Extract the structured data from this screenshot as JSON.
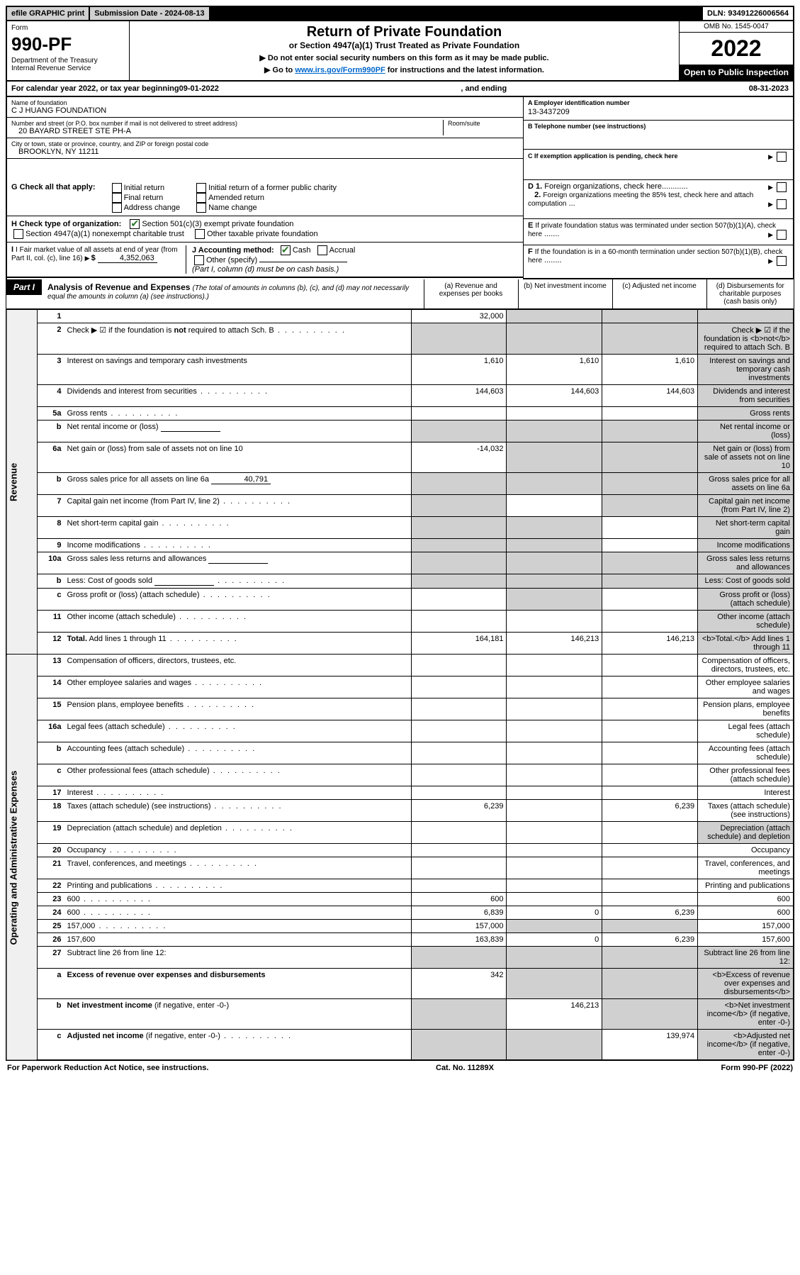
{
  "top": {
    "efile": "efile GRAPHIC print",
    "sub_date_label": "Submission Date - 2024-08-13",
    "dln": "DLN: 93491226006564"
  },
  "header": {
    "form_label": "Form",
    "form_no": "990-PF",
    "dept": "Department of the Treasury\nInternal Revenue Service",
    "title": "Return of Private Foundation",
    "subtitle": "or Section 4947(a)(1) Trust Treated as Private Foundation",
    "note1": "▶ Do not enter social security numbers on this form as it may be made public.",
    "note2_pre": "▶ Go to ",
    "note2_link": "www.irs.gov/Form990PF",
    "note2_post": " for instructions and the latest information.",
    "omb": "OMB No. 1545-0047",
    "year": "2022",
    "open": "Open to Public Inspection"
  },
  "year_line": {
    "pre": "For calendar year 2022, or tax year beginning ",
    "begin": "09-01-2022",
    "mid": ", and ending ",
    "end": "08-31-2023"
  },
  "name_block": {
    "label": "Name of foundation",
    "value": "C J HUANG FOUNDATION",
    "street_label": "Number and street (or P.O. box number if mail is not delivered to street address)",
    "street": "20 BAYARD STREET STE PH-A",
    "room_label": "Room/suite",
    "city_label": "City or town, state or province, country, and ZIP or foreign postal code",
    "city": "BROOKLYN, NY  11211"
  },
  "right_block": {
    "a_label": "A Employer identification number",
    "a_val": "13-3437209",
    "b_label": "B Telephone number (see instructions)",
    "c_label": "C If exemption application is pending, check here",
    "d1": "D 1. Foreign organizations, check here",
    "d2": "2. Foreign organizations meeting the 85% test, check here and attach computation",
    "e": "E If private foundation status was terminated under section 507(b)(1)(A), check here",
    "f": "F If the foundation is in a 60-month termination under section 507(b)(1)(B), check here"
  },
  "g": {
    "label": "G Check all that apply:",
    "opts": [
      "Initial return",
      "Initial return of a former public charity",
      "Final return",
      "Amended return",
      "Address change",
      "Name change"
    ]
  },
  "h": {
    "label": "H Check type of organization:",
    "opt1": "Section 501(c)(3) exempt private foundation",
    "opt2": "Section 4947(a)(1) nonexempt charitable trust",
    "opt3": "Other taxable private foundation"
  },
  "i": {
    "label": "I Fair market value of all assets at end of year (from Part II, col. (c), line 16)",
    "value": "4,352,063"
  },
  "j": {
    "label": "J Accounting method:",
    "cash": "Cash",
    "accrual": "Accrual",
    "other": "Other (specify)",
    "note": "(Part I, column (d) must be on cash basis.)"
  },
  "part1": {
    "label": "Part I",
    "title": "Analysis of Revenue and Expenses",
    "title_note": "(The total of amounts in columns (b), (c), and (d) may not necessarily equal the amounts in column (a) (see instructions).)",
    "cols": {
      "a": "(a) Revenue and expenses per books",
      "b": "(b) Net investment income",
      "c": "(c) Adjusted net income",
      "d": "(d) Disbursements for charitable purposes (cash basis only)"
    }
  },
  "side_rev": "Revenue",
  "side_exp": "Operating and Administrative Expenses",
  "rows": [
    {
      "n": "1",
      "d": "",
      "a": "32,000",
      "b": "",
      "c": "",
      "shade_b": true,
      "shade_c": true,
      "shade_d": true
    },
    {
      "n": "2",
      "d": "Check ▶ ☑ if the foundation is <b>not</b> required to attach Sch. B",
      "dots": true,
      "shade_all": true
    },
    {
      "n": "3",
      "d": "Interest on savings and temporary cash investments",
      "a": "1,610",
      "b": "1,610",
      "c": "1,610",
      "shade_d": true
    },
    {
      "n": "4",
      "d": "Dividends and interest from securities",
      "dots": true,
      "a": "144,603",
      "b": "144,603",
      "c": "144,603",
      "shade_d": true
    },
    {
      "n": "5a",
      "d": "Gross rents",
      "dots": true,
      "shade_d": true
    },
    {
      "n": "b",
      "d": "Net rental income or (loss)",
      "inline_field": true,
      "shade_a": true,
      "shade_b": true,
      "shade_c": true,
      "shade_d": true
    },
    {
      "n": "6a",
      "d": "Net gain or (loss) from sale of assets not on line 10",
      "a": "-14,032",
      "shade_b": true,
      "shade_c": true,
      "shade_d": true
    },
    {
      "n": "b",
      "d": "Gross sales price for all assets on line 6a",
      "inline_val": "40,791",
      "shade_a": true,
      "shade_b": true,
      "shade_c": true,
      "shade_d": true
    },
    {
      "n": "7",
      "d": "Capital gain net income (from Part IV, line 2)",
      "dots": true,
      "shade_a": true,
      "shade_c": true,
      "shade_d": true
    },
    {
      "n": "8",
      "d": "Net short-term capital gain",
      "dots": true,
      "shade_a": true,
      "shade_b": true,
      "shade_d": true
    },
    {
      "n": "9",
      "d": "Income modifications",
      "dots": true,
      "shade_a": true,
      "shade_b": true,
      "shade_d": true
    },
    {
      "n": "10a",
      "d": "Gross sales less returns and allowances",
      "inline_field": true,
      "shade_a": true,
      "shade_b": true,
      "shade_c": true,
      "shade_d": true
    },
    {
      "n": "b",
      "d": "Less: Cost of goods sold",
      "dots": true,
      "inline_field": true,
      "shade_a": true,
      "shade_b": true,
      "shade_c": true,
      "shade_d": true
    },
    {
      "n": "c",
      "d": "Gross profit or (loss) (attach schedule)",
      "dots": true,
      "shade_b": true,
      "shade_d": true
    },
    {
      "n": "11",
      "d": "Other income (attach schedule)",
      "dots": true,
      "shade_d": true
    },
    {
      "n": "12",
      "d": "<b>Total.</b> Add lines 1 through 11",
      "dots": true,
      "a": "164,181",
      "b": "146,213",
      "c": "146,213",
      "shade_d": true
    }
  ],
  "rows_exp": [
    {
      "n": "13",
      "d": "Compensation of officers, directors, trustees, etc."
    },
    {
      "n": "14",
      "d": "Other employee salaries and wages",
      "dots": true
    },
    {
      "n": "15",
      "d": "Pension plans, employee benefits",
      "dots": true
    },
    {
      "n": "16a",
      "d": "Legal fees (attach schedule)",
      "dots": true
    },
    {
      "n": "b",
      "d": "Accounting fees (attach schedule)",
      "dots": true
    },
    {
      "n": "c",
      "d": "Other professional fees (attach schedule)",
      "dots": true
    },
    {
      "n": "17",
      "d": "Interest",
      "dots": true
    },
    {
      "n": "18",
      "d": "Taxes (attach schedule) (see instructions)",
      "dots": true,
      "a": "6,239",
      "c": "6,239"
    },
    {
      "n": "19",
      "d": "Depreciation (attach schedule) and depletion",
      "dots": true,
      "shade_d": true
    },
    {
      "n": "20",
      "d": "Occupancy",
      "dots": true
    },
    {
      "n": "21",
      "d": "Travel, conferences, and meetings",
      "dots": true
    },
    {
      "n": "22",
      "d": "Printing and publications",
      "dots": true
    },
    {
      "n": "23",
      "d": "600",
      "dots": true,
      "a": "600"
    },
    {
      "n": "24",
      "d": "600",
      "dots": true,
      "a": "6,839",
      "b": "0",
      "c": "6,239"
    },
    {
      "n": "25",
      "d": "157,000",
      "dots": true,
      "a": "157,000",
      "shade_b": true,
      "shade_c": true
    },
    {
      "n": "26",
      "d": "157,600",
      "a": "163,839",
      "b": "0",
      "c": "6,239"
    },
    {
      "n": "27",
      "d": "Subtract line 26 from line 12:",
      "shade_a": true,
      "shade_b": true,
      "shade_c": true,
      "shade_d": true
    },
    {
      "n": "a",
      "d": "<b>Excess of revenue over expenses and disbursements</b>",
      "a": "342",
      "shade_b": true,
      "shade_c": true,
      "shade_d": true
    },
    {
      "n": "b",
      "d": "<b>Net investment income</b> (if negative, enter -0-)",
      "shade_a": true,
      "b": "146,213",
      "shade_c": true,
      "shade_d": true
    },
    {
      "n": "c",
      "d": "<b>Adjusted net income</b> (if negative, enter -0-)",
      "dots": true,
      "shade_a": true,
      "shade_b": true,
      "c": "139,974",
      "shade_d": true
    }
  ],
  "footer": {
    "left": "For Paperwork Reduction Act Notice, see instructions.",
    "mid": "Cat. No. 11289X",
    "right": "Form 990-PF (2022)"
  }
}
